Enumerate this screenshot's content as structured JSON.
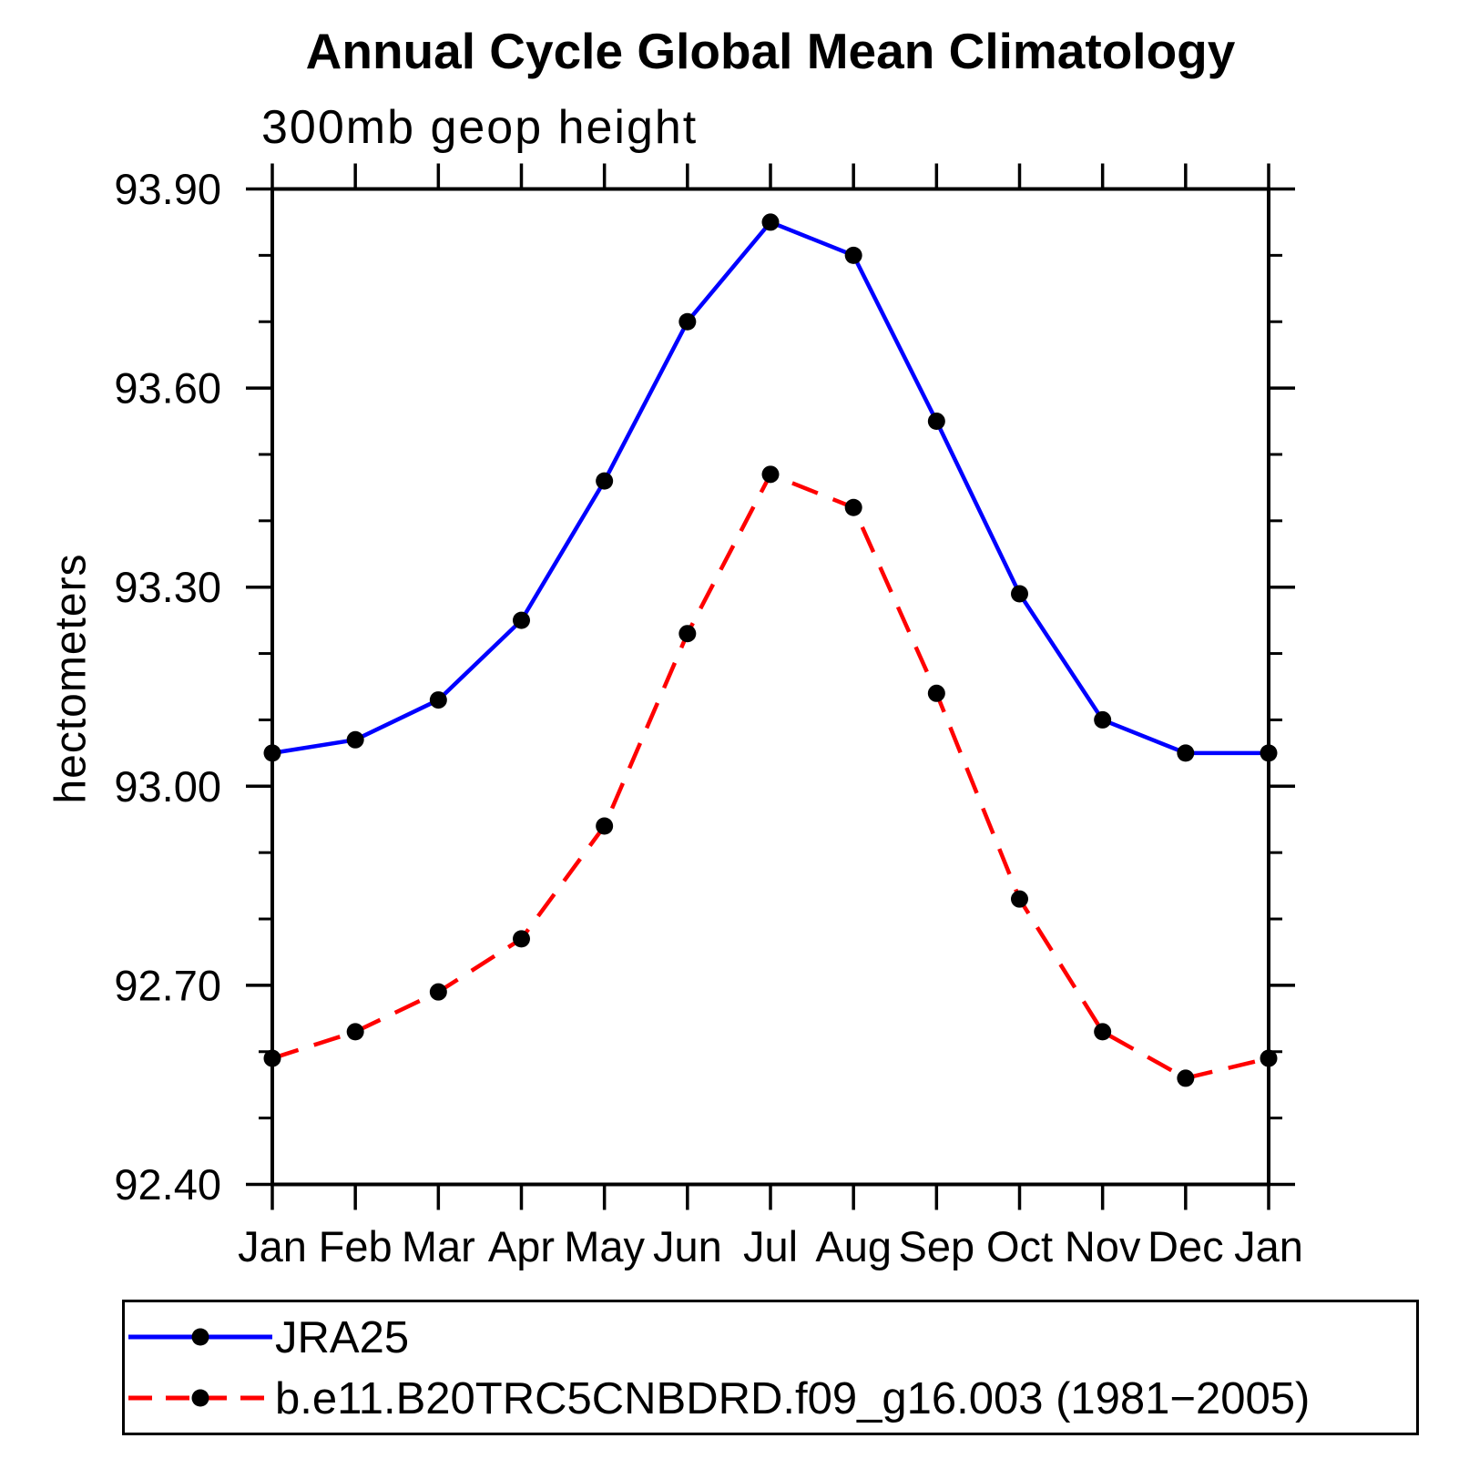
{
  "chart_data": {
    "type": "line",
    "title": "Annual Cycle Global Mean Climatology",
    "subtitle": "300mb geop height",
    "xlabel": "",
    "ylabel": "hectometers",
    "categories": [
      "Jan",
      "Feb",
      "Mar",
      "Apr",
      "May",
      "Jun",
      "Jul",
      "Aug",
      "Sep",
      "Oct",
      "Nov",
      "Dec",
      "Jan"
    ],
    "ylim": [
      92.4,
      93.9
    ],
    "y_major_tick_step": 0.3,
    "y_minor_tick_step": 0.1,
    "y_tick_labels": [
      "93.90",
      "93.60",
      "93.30",
      "93.00",
      "92.70",
      "92.40"
    ],
    "grid": false,
    "legend_position": "below-plot-boxed",
    "marker": "filled-circle",
    "marker_color": "#000000",
    "axis_color": "#000000",
    "series": [
      {
        "name": "JRA25",
        "color": "#0000ff",
        "line_style": "solid",
        "values": [
          93.05,
          93.07,
          93.13,
          93.25,
          93.46,
          93.7,
          93.85,
          93.8,
          93.55,
          93.29,
          93.1,
          93.05,
          93.05
        ]
      },
      {
        "name": "b.e11.B20TRC5CNBDRD.f09_g16.003 (1981−2005)",
        "color": "#ff0000",
        "line_style": "dashed",
        "values": [
          92.59,
          92.63,
          92.69,
          92.77,
          92.94,
          93.23,
          93.47,
          93.42,
          93.14,
          92.83,
          92.63,
          92.56,
          92.59
        ]
      }
    ]
  }
}
